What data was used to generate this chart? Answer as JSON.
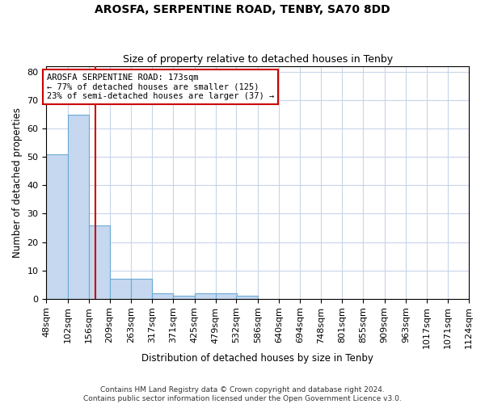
{
  "title1": "AROSFA, SERPENTINE ROAD, TENBY, SA70 8DD",
  "title2": "Size of property relative to detached houses in Tenby",
  "xlabel": "Distribution of detached houses by size in Tenby",
  "ylabel": "Number of detached properties",
  "bin_edges": [
    48,
    102,
    156,
    209,
    263,
    317,
    371,
    425,
    479,
    532,
    586,
    640,
    694,
    748,
    801,
    855,
    909,
    963,
    1017,
    1071,
    1124
  ],
  "bar_heights": [
    51,
    65,
    26,
    7,
    7,
    2,
    1,
    2,
    2,
    1,
    0,
    0,
    0,
    0,
    0,
    0,
    0,
    0,
    0,
    0
  ],
  "bar_color": "#c5d8f0",
  "bar_edge_color": "#6aaad4",
  "property_line_x": 173,
  "property_line_color": "#cc0000",
  "annotation_title": "AROSFA SERPENTINE ROAD: 173sqm",
  "annotation_line1": "← 77% of detached houses are smaller (125)",
  "annotation_line2": "23% of semi-detached houses are larger (37) →",
  "annotation_box_color": "#ffffff",
  "annotation_box_edge_color": "#cc0000",
  "ylim": [
    0,
    82
  ],
  "yticks": [
    0,
    10,
    20,
    30,
    40,
    50,
    60,
    70,
    80
  ],
  "tick_labels": [
    "48sqm",
    "102sqm",
    "156sqm",
    "209sqm",
    "263sqm",
    "317sqm",
    "371sqm",
    "425sqm",
    "479sqm",
    "532sqm",
    "586sqm",
    "640sqm",
    "694sqm",
    "748sqm",
    "801sqm",
    "855sqm",
    "909sqm",
    "963sqm",
    "1017sqm",
    "1071sqm",
    "1124sqm"
  ],
  "footer": "Contains HM Land Registry data © Crown copyright and database right 2024.\nContains public sector information licensed under the Open Government Licence v3.0.",
  "background_color": "#ffffff",
  "grid_color": "#c8d4e8"
}
